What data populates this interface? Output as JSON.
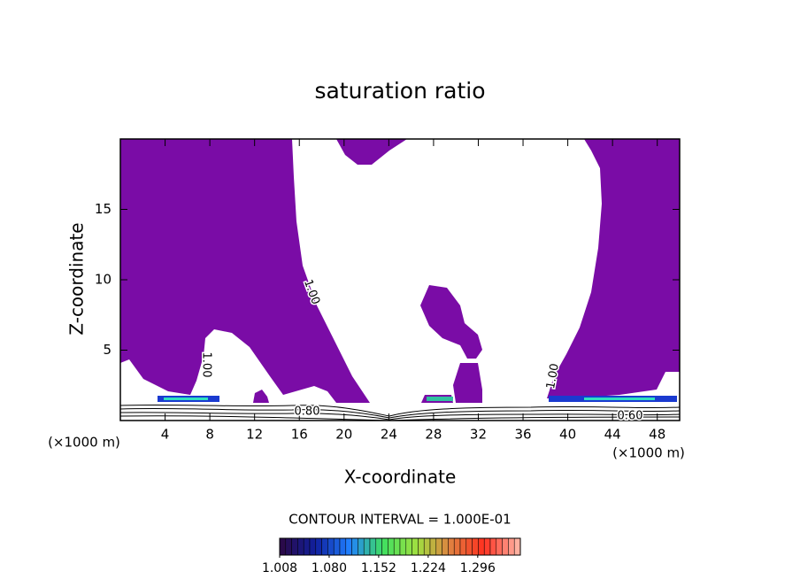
{
  "chart_data": {
    "type": "contour",
    "title": "saturation ratio",
    "x_label": "X-coordinate",
    "y_label": "Z-coordinate",
    "x_unit_left": "(×1000 m)",
    "x_unit_right": "(×1000 m)",
    "xlim": [
      0,
      50
    ],
    "ylim": [
      0,
      20
    ],
    "xticks": [
      4,
      8,
      12,
      16,
      20,
      24,
      28,
      32,
      36,
      40,
      44,
      48
    ],
    "yticks": [
      5,
      10,
      15
    ],
    "fill_color": "#7a0ca6",
    "contour_interval": "CONTOUR INTERVAL = 1.000E-01",
    "contour_labels": [
      "1.00",
      "1.00",
      "1.00",
      "0.80",
      "0.60"
    ],
    "colorbar": {
      "lim": [
        1.008,
        1.358
      ],
      "ticks": [
        1.008,
        {
          "value": 1.08,
          "label": "1.080"
        },
        1.152,
        1.224,
        1.296
      ],
      "colors": [
        "#2a0a4a",
        "#1020a0",
        "#2080ff",
        "#40e060",
        "#a0e040",
        "#e08040",
        "#ff3020",
        "#ffb0a0"
      ]
    }
  }
}
